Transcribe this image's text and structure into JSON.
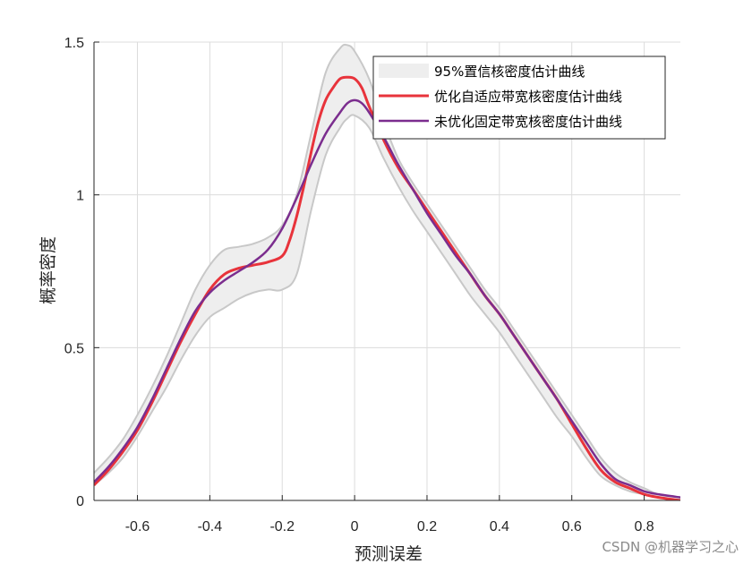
{
  "chart_data": {
    "type": "area",
    "xlabel": "预测误差",
    "ylabel": "概率密度",
    "xlim": [
      -0.72,
      0.9
    ],
    "ylim": [
      0,
      1.5
    ],
    "xticks": [
      -0.6,
      -0.4,
      -0.2,
      0,
      0.2,
      0.4,
      0.6,
      0.8
    ],
    "xtick_labels": [
      "-0.6",
      "-0.4",
      "-0.2",
      "0",
      "0.2",
      "0.4",
      "0.6",
      "0.8"
    ],
    "yticks": [
      0,
      0.5,
      1,
      1.5
    ],
    "ytick_labels": [
      "0",
      "0.5",
      "1",
      "1.5"
    ],
    "grid": true,
    "legend_position": "top-right",
    "series": [
      {
        "name": "95%置信核密度估计曲线",
        "kind": "band",
        "color": "#eeeeee",
        "edge_color": "#c8c8c8",
        "x": [
          -0.72,
          -0.68,
          -0.64,
          -0.6,
          -0.56,
          -0.52,
          -0.48,
          -0.44,
          -0.4,
          -0.36,
          -0.32,
          -0.28,
          -0.24,
          -0.2,
          -0.16,
          -0.12,
          -0.08,
          -0.04,
          -0.02,
          0,
          0.04,
          0.08,
          0.12,
          0.16,
          0.2,
          0.24,
          0.28,
          0.32,
          0.36,
          0.4,
          0.44,
          0.48,
          0.52,
          0.56,
          0.6,
          0.64,
          0.68,
          0.72,
          0.76,
          0.8,
          0.84,
          0.9
        ],
        "upper": [
          0.09,
          0.14,
          0.2,
          0.28,
          0.37,
          0.47,
          0.58,
          0.69,
          0.77,
          0.82,
          0.83,
          0.84,
          0.86,
          0.9,
          1.0,
          1.2,
          1.4,
          1.48,
          1.49,
          1.47,
          1.38,
          1.24,
          1.12,
          1.04,
          0.97,
          0.9,
          0.83,
          0.76,
          0.69,
          0.63,
          0.56,
          0.49,
          0.42,
          0.35,
          0.28,
          0.21,
          0.14,
          0.09,
          0.06,
          0.04,
          0.02,
          0.01
        ],
        "lower": [
          0.05,
          0.09,
          0.14,
          0.21,
          0.29,
          0.37,
          0.46,
          0.54,
          0.6,
          0.63,
          0.66,
          0.68,
          0.69,
          0.69,
          0.74,
          0.95,
          1.13,
          1.22,
          1.25,
          1.26,
          1.22,
          1.12,
          1.03,
          0.95,
          0.88,
          0.81,
          0.74,
          0.67,
          0.61,
          0.55,
          0.48,
          0.41,
          0.34,
          0.27,
          0.21,
          0.14,
          0.08,
          0.05,
          0.03,
          0.02,
          0.01,
          0.0
        ]
      },
      {
        "name": "优化自适应带宽核密度估计曲线",
        "kind": "line",
        "color": "#e8333b",
        "x": [
          -0.72,
          -0.68,
          -0.64,
          -0.6,
          -0.56,
          -0.52,
          -0.48,
          -0.44,
          -0.4,
          -0.36,
          -0.32,
          -0.28,
          -0.24,
          -0.2,
          -0.18,
          -0.16,
          -0.14,
          -0.12,
          -0.1,
          -0.08,
          -0.06,
          -0.04,
          -0.02,
          0,
          0.02,
          0.04,
          0.08,
          0.12,
          0.16,
          0.2,
          0.24,
          0.28,
          0.32,
          0.36,
          0.4,
          0.44,
          0.48,
          0.52,
          0.56,
          0.6,
          0.64,
          0.68,
          0.72,
          0.76,
          0.8,
          0.84,
          0.9
        ],
        "values": [
          0.05,
          0.1,
          0.16,
          0.23,
          0.32,
          0.42,
          0.52,
          0.61,
          0.69,
          0.74,
          0.76,
          0.77,
          0.78,
          0.8,
          0.85,
          0.93,
          1.03,
          1.14,
          1.24,
          1.31,
          1.35,
          1.38,
          1.385,
          1.38,
          1.35,
          1.29,
          1.18,
          1.09,
          1.02,
          0.95,
          0.88,
          0.81,
          0.74,
          0.67,
          0.61,
          0.54,
          0.47,
          0.4,
          0.33,
          0.25,
          0.17,
          0.1,
          0.06,
          0.04,
          0.02,
          0.01,
          0.0
        ]
      },
      {
        "name": "未优化固定带宽核密度估计曲线",
        "kind": "line",
        "color": "#7b2d8e",
        "x": [
          -0.72,
          -0.68,
          -0.64,
          -0.6,
          -0.56,
          -0.52,
          -0.48,
          -0.44,
          -0.4,
          -0.36,
          -0.32,
          -0.28,
          -0.24,
          -0.2,
          -0.16,
          -0.12,
          -0.08,
          -0.04,
          -0.02,
          0,
          0.02,
          0.04,
          0.08,
          0.12,
          0.16,
          0.2,
          0.24,
          0.28,
          0.32,
          0.36,
          0.4,
          0.44,
          0.48,
          0.52,
          0.56,
          0.6,
          0.64,
          0.68,
          0.72,
          0.76,
          0.8,
          0.84,
          0.9
        ],
        "values": [
          0.06,
          0.11,
          0.17,
          0.24,
          0.33,
          0.43,
          0.53,
          0.62,
          0.68,
          0.72,
          0.75,
          0.78,
          0.82,
          0.89,
          0.99,
          1.1,
          1.2,
          1.27,
          1.3,
          1.31,
          1.3,
          1.27,
          1.19,
          1.1,
          1.02,
          0.94,
          0.87,
          0.8,
          0.74,
          0.67,
          0.61,
          0.54,
          0.47,
          0.4,
          0.33,
          0.26,
          0.19,
          0.12,
          0.07,
          0.05,
          0.03,
          0.02,
          0.01
        ]
      }
    ]
  },
  "watermark": "CSDN @机器学习之心"
}
